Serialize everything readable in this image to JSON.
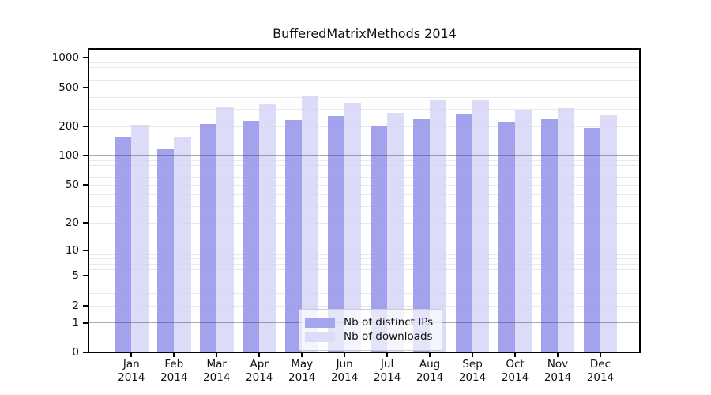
{
  "chart_data": {
    "type": "bar",
    "title": "BufferedMatrixMethods 2014",
    "x_month_labels": [
      "Jan",
      "Feb",
      "Mar",
      "Apr",
      "May",
      "Jun",
      "Jul",
      "Aug",
      "Sep",
      "Oct",
      "Nov",
      "Dec"
    ],
    "x_year_label": "2014",
    "y_ticks": [
      "1000",
      "500",
      "200",
      "100",
      "50",
      "20",
      "10",
      "5",
      "2",
      "1",
      "0"
    ],
    "y_tick_values": [
      1000,
      500,
      200,
      100,
      50,
      20,
      10,
      5,
      2,
      1,
      0
    ],
    "y_scale": "log10(1+y)",
    "ylim": [
      0,
      1230
    ],
    "grid": "major decades solid, minor log steps faint",
    "legend_position": "inside-bottom-center",
    "series": [
      {
        "name": "Nb of distinct IPs",
        "color": "#a6a6ee",
        "values": [
          155,
          119,
          212,
          228,
          233,
          255,
          202,
          237,
          270,
          225,
          234,
          194
        ]
      },
      {
        "name": "Nb of downloads",
        "color": "#dcdcf8",
        "values": [
          207,
          154,
          311,
          336,
          406,
          343,
          273,
          367,
          378,
          295,
          304,
          258
        ]
      }
    ]
  }
}
